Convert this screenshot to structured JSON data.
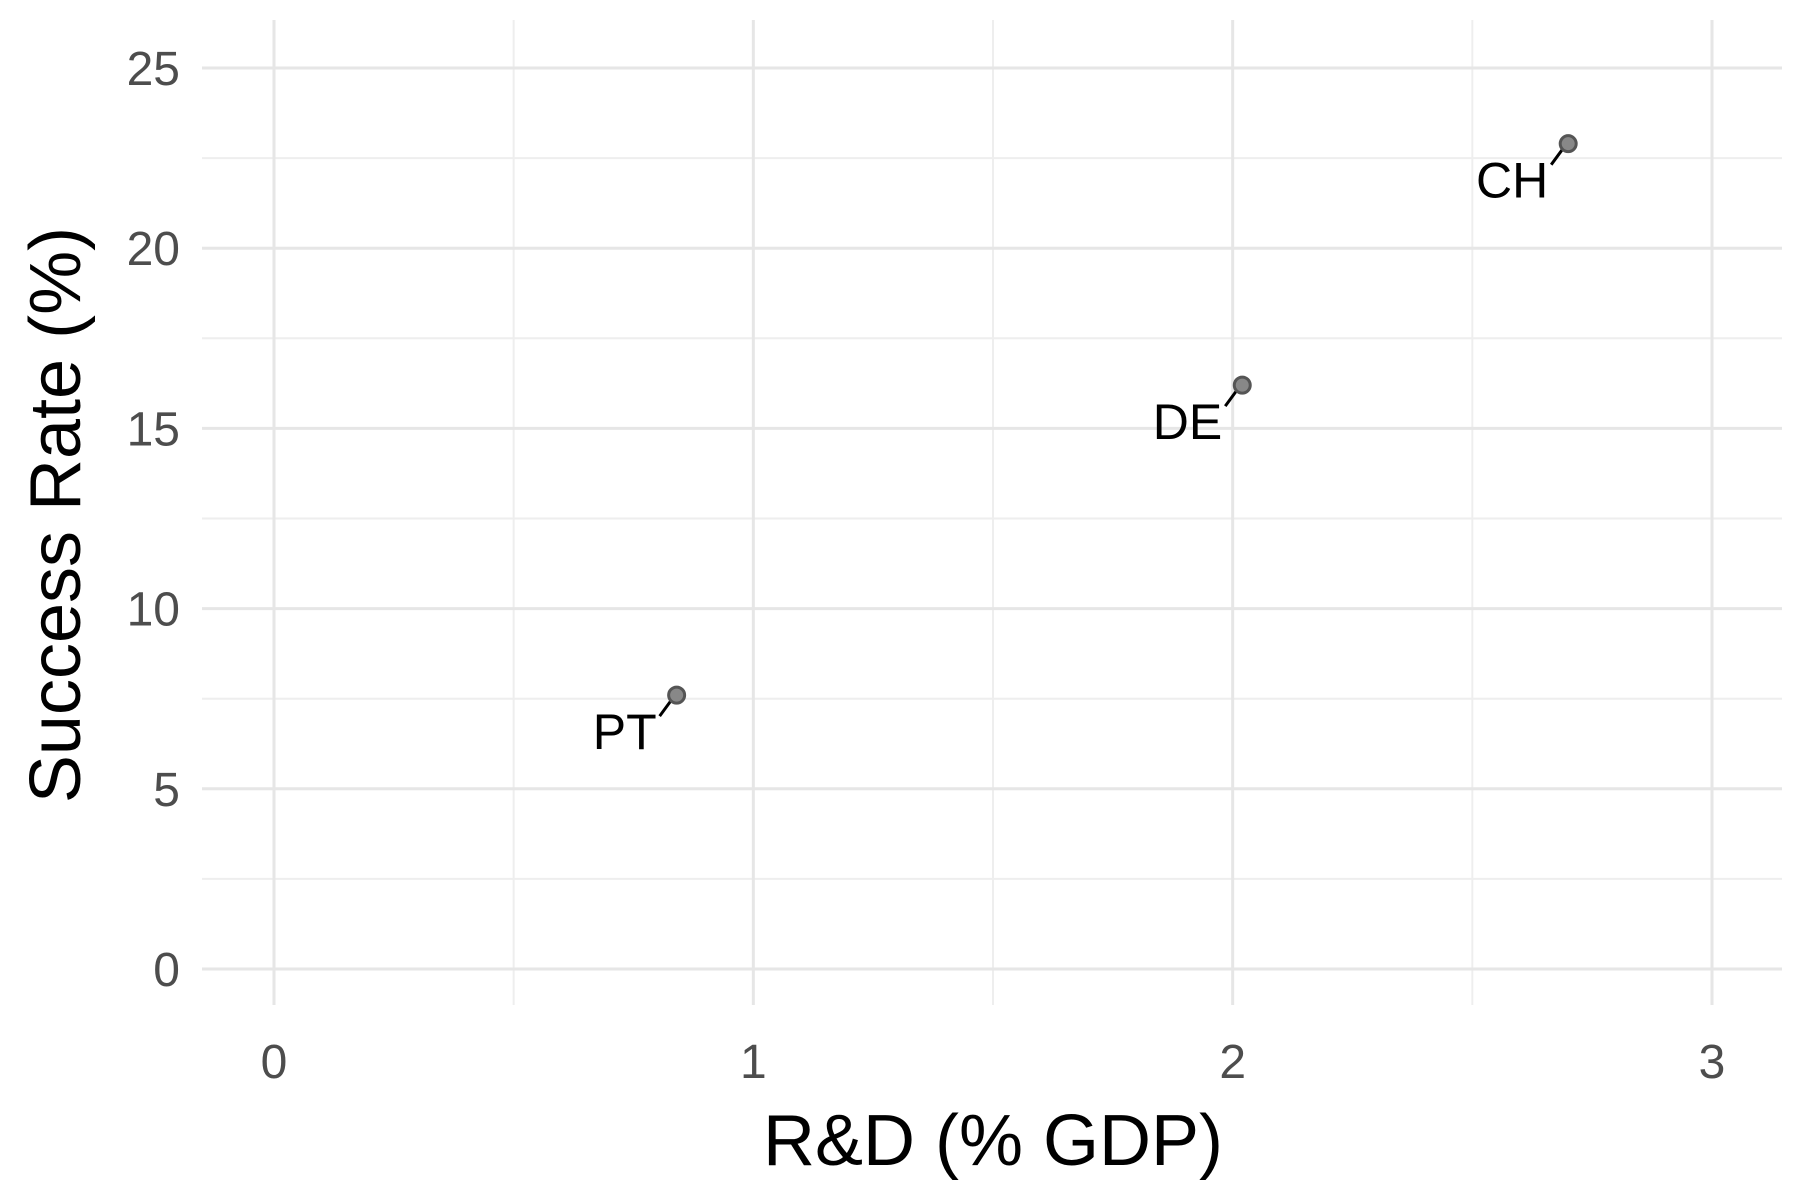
{
  "chart_data": {
    "type": "scatter",
    "xlabel": "R&D (% GDP)",
    "ylabel": "Success Rate (%)",
    "xlim": [
      0,
      3
    ],
    "ylim": [
      0,
      25
    ],
    "x_ticks": [
      "0",
      "1",
      "2",
      "3"
    ],
    "y_ticks": [
      "0",
      "5",
      "10",
      "15",
      "20",
      "25"
    ],
    "grid": true,
    "points": [
      {
        "label": "PT",
        "x": 0.84,
        "y": 7.6
      },
      {
        "label": "DE",
        "x": 2.02,
        "y": 16.2
      },
      {
        "label": "CH",
        "x": 2.7,
        "y": 22.9
      }
    ],
    "colors": {
      "point": "#888888",
      "grid": "#e6e6e6"
    }
  }
}
